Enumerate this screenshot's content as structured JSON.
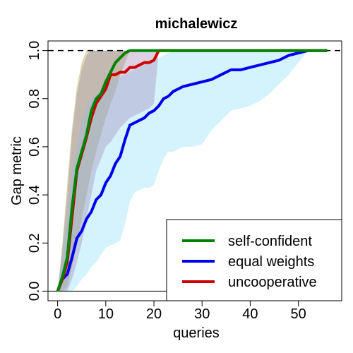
{
  "chart_data": {
    "type": "line",
    "title": "michalewicz",
    "xlabel": "queries",
    "ylabel": "Gap metric",
    "xlim": [
      -2,
      59
    ],
    "ylim": [
      -0.04,
      1.04
    ],
    "xticks": [
      0,
      10,
      20,
      30,
      40,
      50
    ],
    "yticks": [
      0.0,
      0.2,
      0.4,
      0.6,
      0.8,
      1.0
    ],
    "x_tick_labels": [
      "0",
      "10",
      "20",
      "30",
      "40",
      "50"
    ],
    "y_tick_labels": [
      "0.0",
      "0.2",
      "0.4",
      "0.6",
      "0.8",
      "1.0"
    ],
    "reference_line": {
      "y": 1.0,
      "style": "dashed",
      "color": "#000000"
    },
    "baseline": {
      "y": 0.0,
      "color": "#000000"
    },
    "legend_position": "bottom-right",
    "series": [
      {
        "name": "self-confident",
        "color": "#008000",
        "band_color": "#a0a040",
        "band_opacity": 0.4,
        "x": [
          0,
          1,
          2,
          3,
          4,
          5,
          6,
          7,
          8,
          9,
          10,
          11,
          12,
          13,
          14,
          15,
          16,
          18,
          20,
          25,
          30,
          40,
          50,
          56
        ],
        "values": [
          0.0,
          0.06,
          0.14,
          0.35,
          0.51,
          0.58,
          0.65,
          0.75,
          0.8,
          0.82,
          0.87,
          0.91,
          0.95,
          0.97,
          0.99,
          1.0,
          1.0,
          1.0,
          1.0,
          1.0,
          1.0,
          1.0,
          1.0,
          1.0
        ],
        "band_low": [
          0.0,
          0.0,
          0.02,
          0.1,
          0.2,
          0.3,
          0.4,
          0.5,
          0.58,
          0.65,
          0.72,
          0.78,
          0.83,
          0.9,
          0.95,
          1.0,
          1.0,
          1.0,
          1.0,
          1.0,
          1.0,
          1.0,
          1.0,
          1.0
        ],
        "band_high": [
          0.0,
          0.2,
          0.45,
          0.68,
          0.85,
          0.95,
          1.0,
          1.0,
          1.0,
          1.0,
          1.0,
          1.0,
          1.0,
          1.0,
          1.0,
          1.0,
          1.0,
          1.0,
          1.0,
          1.0,
          1.0,
          1.0,
          1.0,
          1.0
        ]
      },
      {
        "name": "equal weights",
        "color": "#0000ee",
        "band_color": "#87ddf5",
        "band_opacity": 0.35,
        "x": [
          0,
          1,
          2,
          3,
          4,
          5,
          6,
          7,
          8,
          9,
          10,
          11,
          12,
          13,
          14,
          15,
          16,
          17,
          18,
          19,
          20,
          21,
          22,
          23,
          24,
          25,
          26,
          28,
          30,
          32,
          34,
          36,
          38,
          40,
          42,
          44,
          46,
          48,
          50,
          52,
          54,
          56
        ],
        "values": [
          0.0,
          0.05,
          0.07,
          0.14,
          0.22,
          0.25,
          0.3,
          0.33,
          0.38,
          0.4,
          0.45,
          0.48,
          0.53,
          0.56,
          0.63,
          0.69,
          0.7,
          0.71,
          0.72,
          0.74,
          0.75,
          0.77,
          0.8,
          0.81,
          0.83,
          0.84,
          0.85,
          0.86,
          0.87,
          0.88,
          0.9,
          0.92,
          0.92,
          0.93,
          0.94,
          0.95,
          0.96,
          0.98,
          0.99,
          1.0,
          1.0,
          1.0
        ],
        "band_low": [
          0.0,
          0.0,
          0.0,
          0.0,
          0.02,
          0.05,
          0.07,
          0.1,
          0.12,
          0.15,
          0.18,
          0.19,
          0.2,
          0.21,
          0.28,
          0.37,
          0.41,
          0.42,
          0.43,
          0.43,
          0.44,
          0.5,
          0.55,
          0.58,
          0.58,
          0.59,
          0.6,
          0.6,
          0.61,
          0.67,
          0.71,
          0.75,
          0.76,
          0.77,
          0.79,
          0.82,
          0.86,
          0.9,
          0.95,
          1.0,
          1.0,
          1.0
        ],
        "band_high": [
          0.0,
          0.15,
          0.3,
          0.5,
          0.6,
          0.7,
          0.77,
          0.8,
          0.82,
          0.84,
          0.86,
          0.87,
          0.88,
          0.89,
          0.9,
          0.91,
          0.92,
          0.93,
          0.94,
          0.95,
          0.96,
          0.97,
          0.98,
          0.99,
          1.0,
          1.0,
          1.0,
          1.0,
          1.0,
          1.0,
          1.0,
          1.0,
          1.0,
          1.0,
          1.0,
          1.0,
          1.0,
          1.0,
          1.0,
          1.0,
          1.0,
          1.0
        ]
      },
      {
        "name": "uncooperative",
        "color": "#cc0000",
        "band_color": "#9a7fb0",
        "band_opacity": 0.35,
        "x": [
          0,
          1,
          2,
          3,
          4,
          5,
          6,
          7,
          8,
          9,
          10,
          11,
          12,
          13,
          14,
          15,
          16,
          17,
          18,
          19,
          20,
          21,
          22,
          30,
          40,
          50,
          56
        ],
        "values": [
          0.0,
          0.05,
          0.12,
          0.31,
          0.5,
          0.57,
          0.64,
          0.72,
          0.78,
          0.81,
          0.84,
          0.9,
          0.9,
          0.91,
          0.91,
          0.93,
          0.93,
          0.94,
          0.95,
          0.95,
          0.96,
          1.0,
          1.0,
          1.0,
          1.0,
          1.0,
          1.0
        ],
        "band_low": [
          0.0,
          0.0,
          0.0,
          0.05,
          0.12,
          0.2,
          0.3,
          0.4,
          0.5,
          0.55,
          0.6,
          0.62,
          0.65,
          0.68,
          0.7,
          0.72,
          0.73,
          0.74,
          0.75,
          0.76,
          0.78,
          1.0,
          1.0,
          1.0,
          1.0,
          1.0,
          1.0
        ],
        "band_high": [
          0.0,
          0.18,
          0.4,
          0.65,
          0.82,
          0.92,
          0.98,
          1.0,
          1.0,
          1.0,
          1.0,
          1.0,
          1.0,
          1.0,
          1.0,
          1.0,
          1.0,
          1.0,
          1.0,
          1.0,
          1.0,
          1.0,
          1.0,
          1.0,
          1.0,
          1.0,
          1.0
        ]
      }
    ]
  }
}
